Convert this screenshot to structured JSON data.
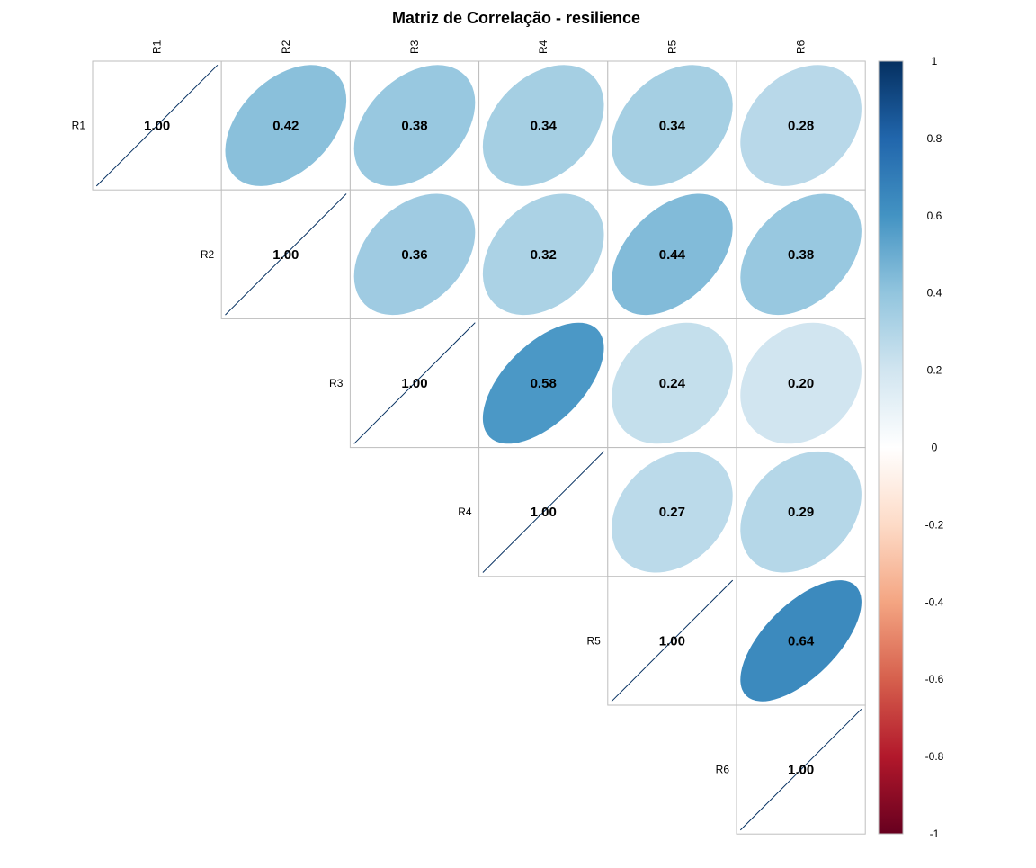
{
  "chart_data": {
    "type": "heatmap",
    "title": "Matriz de Correlação - resilience",
    "variables": [
      "R1",
      "R2",
      "R3",
      "R4",
      "R5",
      "R6"
    ],
    "matrix": [
      [
        1.0,
        0.42,
        0.38,
        0.34,
        0.34,
        0.28
      ],
      [
        0.42,
        1.0,
        0.36,
        0.32,
        0.44,
        0.38
      ],
      [
        0.38,
        0.36,
        1.0,
        0.58,
        0.24,
        0.2
      ],
      [
        0.34,
        0.32,
        0.58,
        1.0,
        0.27,
        0.29
      ],
      [
        0.34,
        0.44,
        0.24,
        0.27,
        1.0,
        0.64
      ],
      [
        0.28,
        0.38,
        0.2,
        0.29,
        0.64,
        1.0
      ]
    ],
    "value_labels": [
      [
        "1.00",
        "0.42",
        "0.38",
        "0.34",
        "0.34",
        "0.28"
      ],
      [
        "0.42",
        "1.00",
        "0.36",
        "0.32",
        "0.44",
        "0.38"
      ],
      [
        "0.38",
        "0.36",
        "1.00",
        "0.58",
        "0.24",
        "0.20"
      ],
      [
        "0.34",
        "0.32",
        "0.58",
        "1.00",
        "0.27",
        "0.29"
      ],
      [
        "0.34",
        "0.44",
        "0.24",
        "0.27",
        "1.00",
        "0.64"
      ],
      [
        "0.28",
        "0.38",
        "0.20",
        "0.29",
        "0.64",
        "1.00"
      ]
    ],
    "shape": "ellipse",
    "layout": "upper triangle",
    "colorbar": {
      "range": [
        -1,
        1
      ],
      "ticks": [
        "1",
        "0.8",
        "0.6",
        "0.4",
        "0.2",
        "0",
        "-0.2",
        "-0.4",
        "-0.6",
        "-0.8",
        "-1"
      ],
      "tick_values": [
        1,
        0.8,
        0.6,
        0.4,
        0.2,
        0,
        -0.2,
        -0.4,
        -0.6,
        -0.8,
        -1
      ],
      "colors": [
        "#67001F",
        "#B2182B",
        "#D6604D",
        "#F4A582",
        "#FDDBC7",
        "#FFFFFF",
        "#D1E5F0",
        "#92C5DE",
        "#4393C3",
        "#2166AC",
        "#053061"
      ]
    },
    "grid_color": "#BEBEBE"
  }
}
